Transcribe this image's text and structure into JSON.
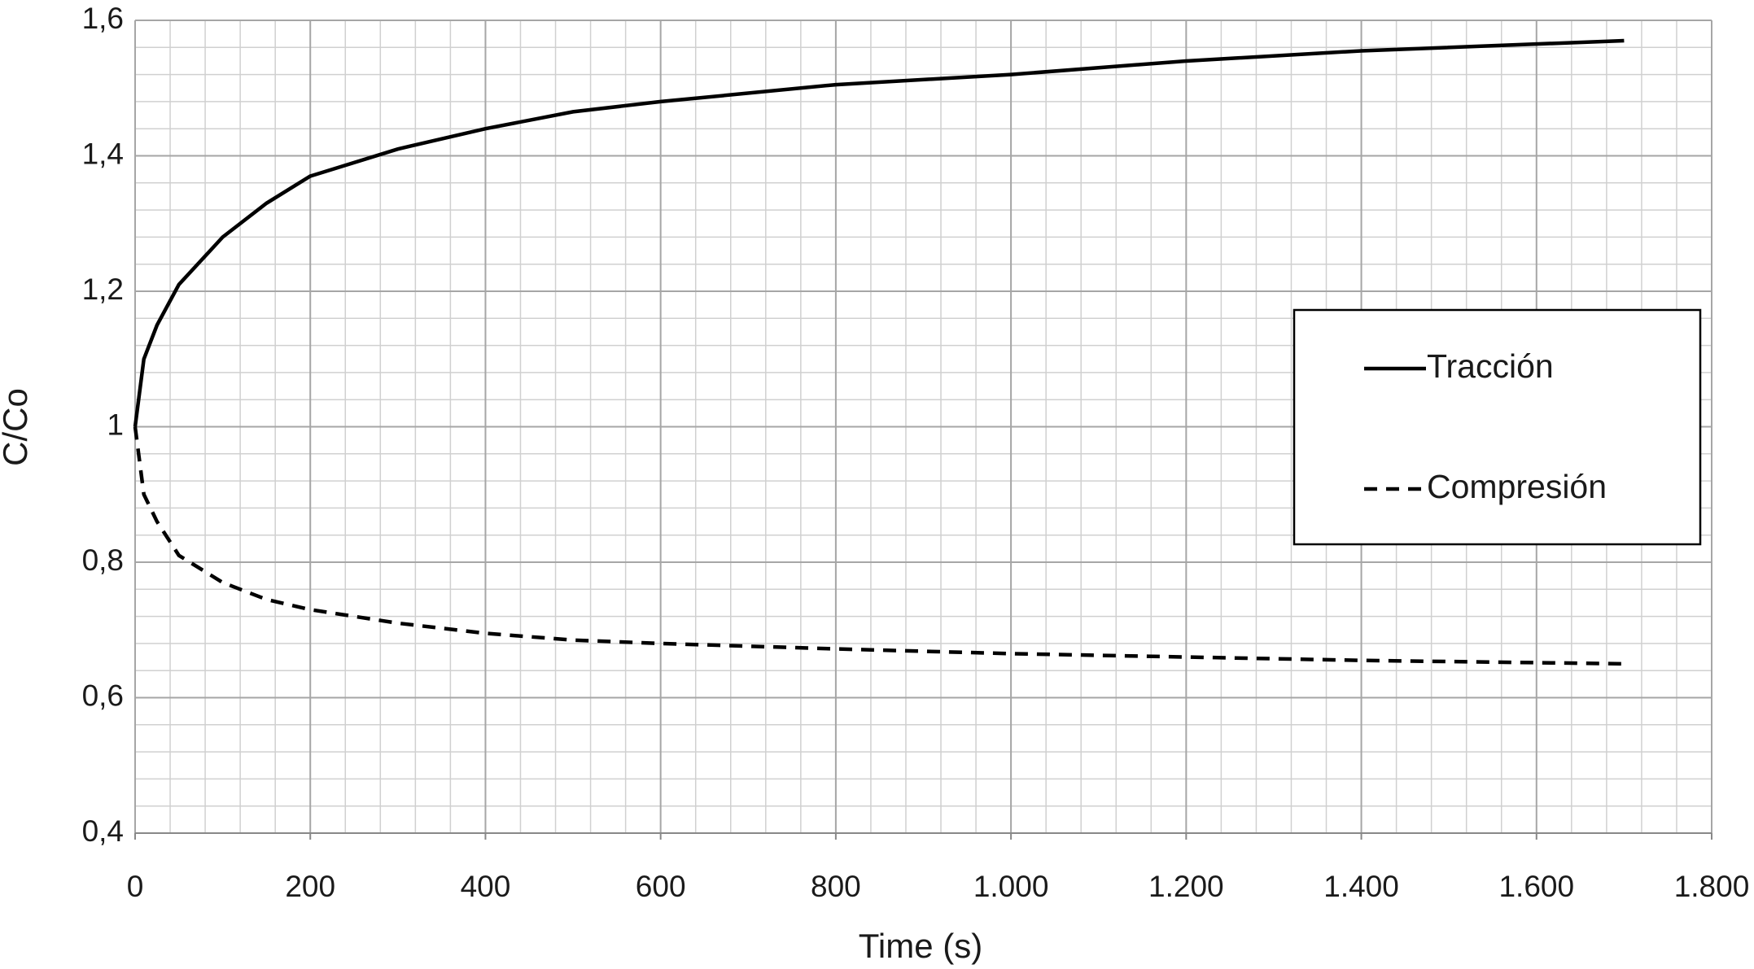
{
  "chart_data": {
    "type": "line",
    "x_label": "Time (s)",
    "y_label": "C/Co",
    "xlim": [
      0,
      1800
    ],
    "xticks": [
      0,
      200,
      400,
      600,
      800,
      {
        "value": 1000,
        "label": "1.000"
      },
      {
        "value": 1200,
        "label": "1.200"
      },
      {
        "value": 1400,
        "label": "1.400"
      },
      {
        "value": 1600,
        "label": "1.600"
      },
      {
        "value": 1800,
        "label": "1.800"
      }
    ],
    "ylim": [
      0.4,
      1.6
    ],
    "yticks": [
      {
        "value": 0.4,
        "label": "0,4"
      },
      {
        "value": 0.6,
        "label": "0,6"
      },
      {
        "value": 0.8,
        "label": "0,8"
      },
      1,
      {
        "value": 1.2,
        "label": "1,2"
      },
      {
        "value": 1.4,
        "label": "1,4"
      },
      {
        "value": 1.6,
        "label": "1,6"
      }
    ],
    "grid": true,
    "minor_grid": {
      "x": 40,
      "y": 0.04
    },
    "legend": "right",
    "x": [
      0,
      10,
      25,
      50,
      100,
      150,
      200,
      300,
      400,
      500,
      600,
      800,
      1000,
      1200,
      1400,
      1700
    ],
    "series": [
      {
        "name": "Tracción",
        "color": "#000000",
        "style": "solid",
        "values": [
          1.0,
          1.1,
          1.15,
          1.21,
          1.28,
          1.33,
          1.37,
          1.41,
          1.44,
          1.465,
          1.48,
          1.505,
          1.52,
          1.54,
          1.555,
          1.57
        ]
      },
      {
        "name": "Compresión",
        "color": "#000000",
        "style": "dashed",
        "values": [
          1.0,
          0.9,
          0.86,
          0.81,
          0.77,
          0.745,
          0.73,
          0.71,
          0.695,
          0.685,
          0.68,
          0.672,
          0.665,
          0.66,
          0.655,
          0.65
        ]
      }
    ]
  }
}
